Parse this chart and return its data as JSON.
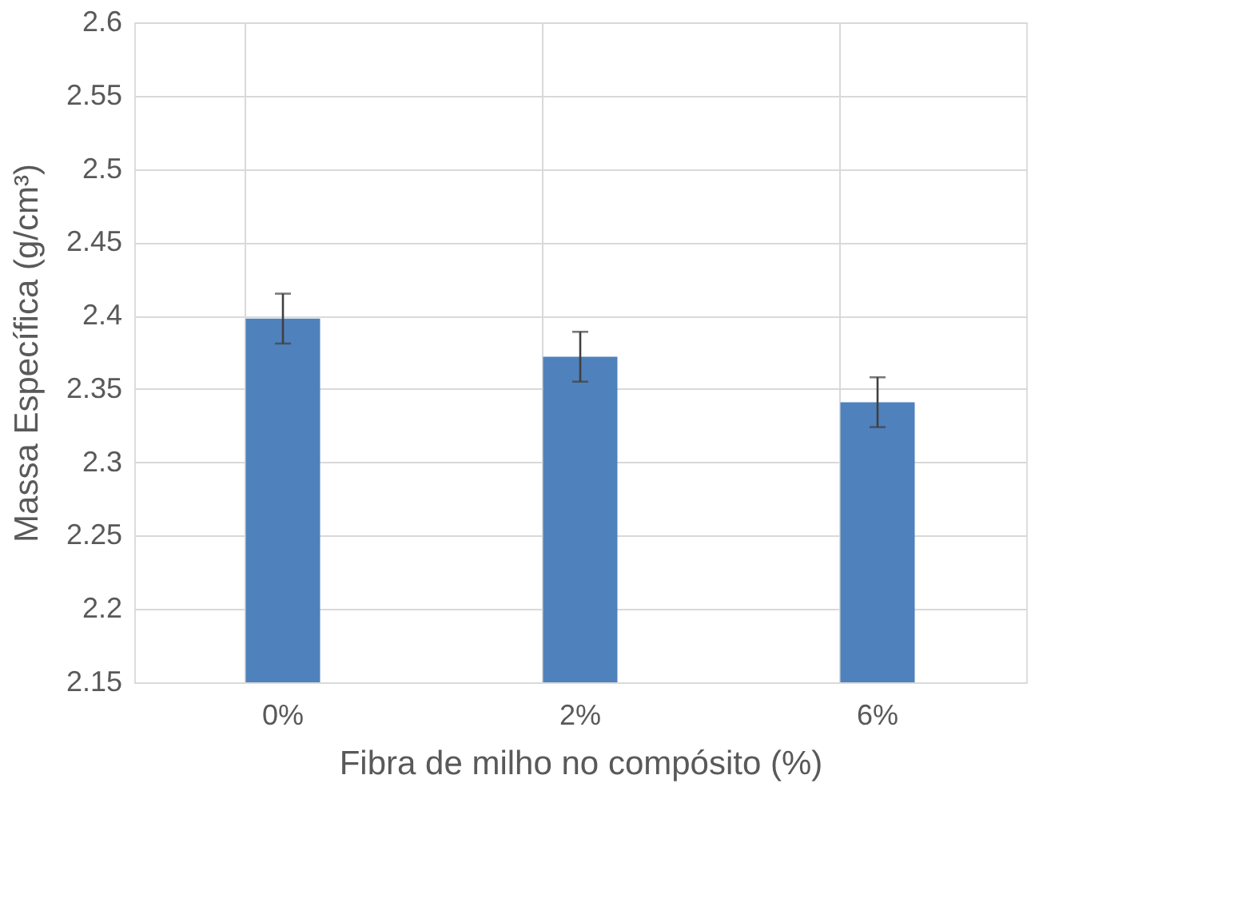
{
  "chart_data": {
    "type": "bar",
    "xlabel": "Fibra de milho no compósito (%)",
    "ylabel": "Massa Específica (g/cm³)",
    "categories": [
      "0%",
      "2%",
      "6%"
    ],
    "values": [
      2.398,
      2.372,
      2.341
    ],
    "errors": [
      0.017,
      0.017,
      0.017
    ],
    "color": "#4f81bd",
    "ylim": [
      2.15,
      2.6
    ],
    "yticks": [
      2.15,
      2.2,
      2.25,
      2.3,
      2.35,
      2.4,
      2.45,
      2.5,
      2.55,
      2.6
    ],
    "grid": true
  }
}
